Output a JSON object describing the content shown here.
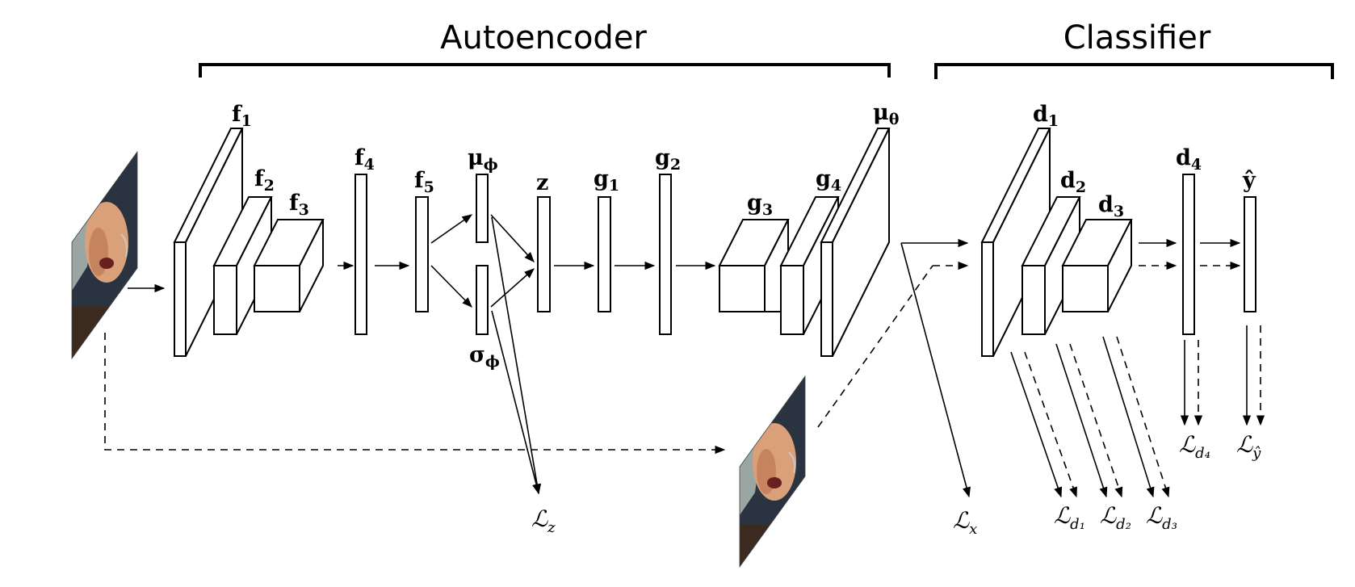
{
  "sections": {
    "autoencoder": "Autoencoder",
    "classifier": "Classifier"
  },
  "layers": {
    "f1": {
      "base": "f",
      "sub": "1"
    },
    "f2": {
      "base": "f",
      "sub": "2"
    },
    "f3": {
      "base": "f",
      "sub": "3"
    },
    "f4": {
      "base": "f",
      "sub": "4"
    },
    "f5": {
      "base": "f",
      "sub": "5"
    },
    "mu_phi": {
      "base": "μ",
      "sub": "ϕ"
    },
    "sigma_phi": {
      "base": "σ",
      "sub": "ϕ"
    },
    "z": {
      "base": "z",
      "sub": ""
    },
    "g1": {
      "base": "g",
      "sub": "1"
    },
    "g2": {
      "base": "g",
      "sub": "2"
    },
    "g3": {
      "base": "g",
      "sub": "3"
    },
    "g4": {
      "base": "g",
      "sub": "4"
    },
    "mu_theta": {
      "base": "μ",
      "sub": "θ"
    },
    "d1": {
      "base": "d",
      "sub": "1"
    },
    "d2": {
      "base": "d",
      "sub": "2"
    },
    "d3": {
      "base": "d",
      "sub": "3"
    },
    "d4": {
      "base": "d",
      "sub": "4"
    },
    "y_hat": {
      "base": "ŷ",
      "sub": ""
    }
  },
  "losses": {
    "L_z": {
      "base": "ℒ",
      "sub": "z"
    },
    "L_x": {
      "base": "ℒ",
      "sub": "x"
    },
    "L_d1": {
      "base": "ℒ",
      "sub": "d₁"
    },
    "L_d2": {
      "base": "ℒ",
      "sub": "d₂"
    },
    "L_d3": {
      "base": "ℒ",
      "sub": "d₃"
    },
    "L_d4": {
      "base": "ℒ",
      "sub": "d₄"
    },
    "L_yhat": {
      "base": "ℒ",
      "sub": "ŷ"
    }
  },
  "images": {
    "input": "input-face-image",
    "reconstruction": "reconstructed-face-image"
  },
  "colors": {
    "skin": "#d9a07a",
    "skin_shadow": "#b8704e",
    "background": "#2a3340",
    "sky": "#9aa6a4",
    "shirt": "#3a2a20"
  }
}
